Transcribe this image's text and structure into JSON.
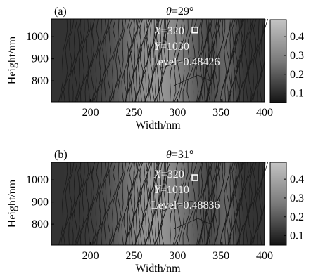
{
  "chart_data": [
    {
      "type": "contour",
      "panel": "(a)",
      "title_prefix": "θ",
      "title_value": "=29°",
      "xlabel": "Width/nm",
      "ylabel": "Height/nm",
      "xlim": [
        155,
        400
      ],
      "ylim": [
        705,
        1080
      ],
      "xticks": [
        200,
        250,
        300,
        350,
        400
      ],
      "yticks": [
        800,
        900,
        1000
      ],
      "colorbar": {
        "ticks": [
          0.1,
          0.2,
          0.3,
          0.4
        ],
        "range": [
          0.05,
          0.49
        ]
      },
      "marker": {
        "x": 320,
        "y": 1030
      },
      "annotation": {
        "x_label": "X",
        "x_text": "=320",
        "y_label": "Y",
        "y_text": "=1030",
        "level_text": "Level=0.48426"
      }
    },
    {
      "type": "contour",
      "panel": "(b)",
      "title_prefix": "θ",
      "title_value": "=31°",
      "xlabel": "Width/nm",
      "ylabel": "Height/nm",
      "xlim": [
        155,
        400
      ],
      "ylim": [
        705,
        1080
      ],
      "xticks": [
        200,
        250,
        300,
        350,
        400
      ],
      "yticks": [
        800,
        900,
        1000
      ],
      "colorbar": {
        "ticks": [
          0.1,
          0.2,
          0.3,
          0.4
        ],
        "range": [
          0.05,
          0.49
        ]
      },
      "marker": {
        "x": 320,
        "y": 1010
      },
      "annotation": {
        "x_label": "X",
        "x_text": "=320",
        "y_label": "Y",
        "y_text": "=1010",
        "level_text": "Level=0.48836"
      }
    }
  ]
}
